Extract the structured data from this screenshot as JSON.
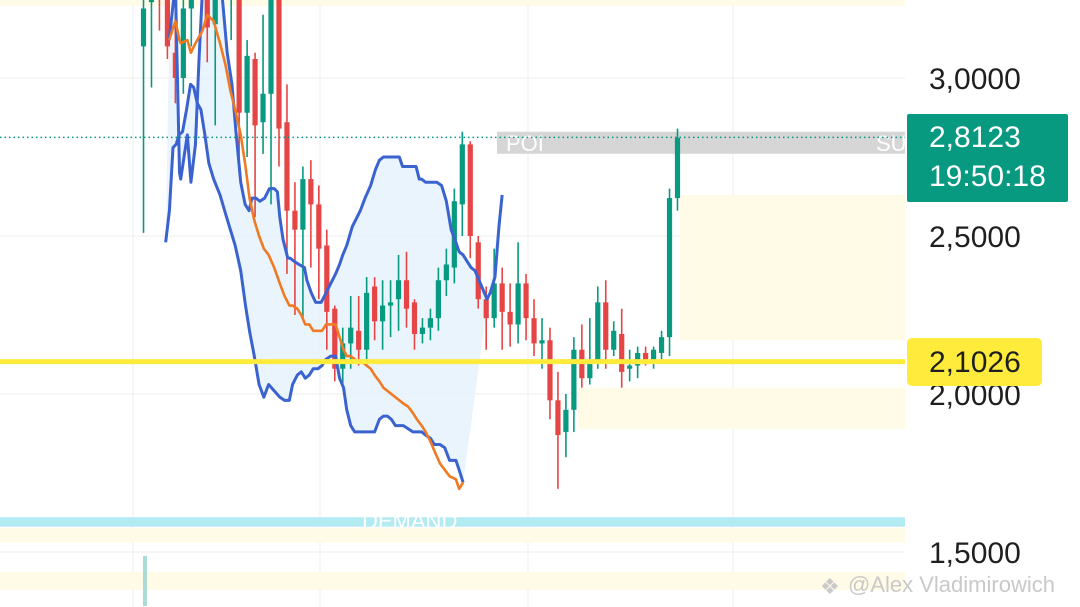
{
  "chart_data": {
    "type": "candlestick",
    "price_axis": {
      "ticks": [
        "3,0000",
        "2,5000",
        "2,0000",
        "1,5000"
      ],
      "tick_values": [
        3.0,
        2.5,
        2.0,
        1.5
      ],
      "range": [
        1.42,
        3.44
      ]
    },
    "last_price": {
      "label": "2,8123",
      "countdown": "19:50:18",
      "value": 2.8123,
      "color": "#089981"
    },
    "level_line": {
      "label": "2,1026",
      "value": 2.1026,
      "color": "#ffeb3b"
    },
    "zones": [
      {
        "label": "POI",
        "top": 2.83,
        "bottom": 2.76,
        "color": "#d6d6d6"
      },
      {
        "label": "SU",
        "top": 2.83,
        "bottom": 2.76,
        "color": "#d6d6d6"
      },
      {
        "label": "DEMAND",
        "top": 1.61,
        "bottom": 1.58,
        "color": "#b2ebf2"
      }
    ],
    "bollinger_upper": [
      [
        3.22,
        3.12
      ],
      [
        4.0,
        3.3
      ],
      [
        4.52,
        2.7
      ],
      [
        4.67,
        2.68
      ],
      [
        5.5,
        2.82
      ],
      [
        5.95,
        2.67
      ],
      [
        6.52,
        2.79
      ],
      [
        6.95,
        3.05
      ],
      [
        7.4,
        3.28
      ],
      [
        7.8,
        3.45
      ],
      [
        8.0,
        3.62
      ],
      [
        8.5,
        3.52
      ],
      [
        9.2,
        3.42
      ],
      [
        9.8,
        3.28
      ],
      [
        10.5,
        3.08
      ],
      [
        11.1,
        2.98
      ],
      [
        11.6,
        2.83
      ],
      [
        12.2,
        2.67
      ],
      [
        12.75,
        2.6
      ],
      [
        13.25,
        2.58
      ],
      [
        13.6,
        2.62
      ],
      [
        14.1,
        2.62
      ],
      [
        14.6,
        2.61
      ],
      [
        15.2,
        2.62
      ],
      [
        15.8,
        2.65
      ],
      [
        16.4,
        2.65
      ],
      [
        16.8,
        2.64
      ],
      [
        17.1,
        2.56
      ],
      [
        17.5,
        2.49
      ],
      [
        18.1,
        2.43
      ],
      [
        18.4,
        2.43
      ],
      [
        18.9,
        2.42
      ],
      [
        19.5,
        2.41
      ],
      [
        20.2,
        2.4
      ],
      [
        20.5,
        2.36
      ],
      [
        21.05,
        2.32
      ],
      [
        21.6,
        2.29
      ],
      [
        22.3,
        2.29
      ],
      [
        22.9,
        2.32
      ],
      [
        23.5,
        2.35
      ],
      [
        24.1,
        2.38
      ],
      [
        24.6,
        2.41
      ],
      [
        25.0,
        2.44
      ],
      [
        25.5,
        2.47
      ],
      [
        26.2,
        2.53
      ],
      [
        26.8,
        2.56
      ],
      [
        27.2,
        2.58
      ],
      [
        27.8,
        2.62
      ],
      [
        28.5,
        2.66
      ],
      [
        29.1,
        2.71
      ],
      [
        29.6,
        2.74
      ],
      [
        30.1,
        2.75
      ],
      [
        30.6,
        2.75
      ],
      [
        31.1,
        2.75
      ],
      [
        31.6,
        2.75
      ],
      [
        32.1,
        2.75
      ],
      [
        32.5,
        2.72
      ],
      [
        33.0,
        2.72
      ],
      [
        33.5,
        2.72
      ],
      [
        34.2,
        2.72
      ],
      [
        34.6,
        2.68
      ],
      [
        34.9,
        2.68
      ],
      [
        35.4,
        2.67
      ],
      [
        36.2,
        2.67
      ],
      [
        36.8,
        2.67
      ],
      [
        37.4,
        2.66
      ],
      [
        38.0,
        2.61
      ],
      [
        38.6,
        2.52
      ],
      [
        39.2,
        2.48
      ],
      [
        39.6,
        2.45
      ],
      [
        40.1,
        2.44
      ],
      [
        40.6,
        2.42
      ],
      [
        41.1,
        2.4
      ],
      [
        41.6,
        2.39
      ],
      [
        42.1,
        2.36
      ],
      [
        42.6,
        2.33
      ],
      [
        43.1,
        2.3
      ],
      [
        43.5,
        2.32
      ],
      [
        44.1,
        2.37
      ],
      [
        44.6,
        2.53
      ],
      [
        45.0,
        2.63
      ]
    ],
    "bollinger_lower": [
      [
        2.78,
        2.48
      ],
      [
        3.25,
        2.58
      ],
      [
        3.7,
        2.78
      ],
      [
        4.1,
        2.79
      ],
      [
        4.45,
        2.82
      ],
      [
        4.9,
        2.83
      ],
      [
        5.4,
        2.9
      ],
      [
        5.9,
        2.98
      ],
      [
        6.3,
        2.97
      ],
      [
        6.75,
        2.92
      ],
      [
        7.2,
        2.9
      ],
      [
        7.7,
        2.82
      ],
      [
        8.2,
        2.73
      ],
      [
        8.8,
        2.68
      ],
      [
        9.6,
        2.63
      ],
      [
        10.3,
        2.57
      ],
      [
        10.9,
        2.52
      ],
      [
        11.5,
        2.47
      ],
      [
        12.2,
        2.39
      ],
      [
        12.8,
        2.28
      ],
      [
        13.3,
        2.2
      ],
      [
        13.9,
        2.12
      ],
      [
        14.5,
        2.03
      ],
      [
        15.1,
        1.99
      ],
      [
        15.7,
        2.03
      ],
      [
        16.4,
        2.01
      ],
      [
        17.1,
        1.99
      ],
      [
        17.7,
        1.98
      ],
      [
        18.3,
        1.98
      ],
      [
        18.7,
        2.03
      ],
      [
        19.3,
        2.06
      ],
      [
        19.8,
        2.07
      ],
      [
        20.3,
        2.05
      ],
      [
        20.8,
        2.06
      ],
      [
        21.3,
        2.08
      ],
      [
        21.9,
        2.08
      ],
      [
        22.4,
        2.09
      ],
      [
        22.9,
        2.11
      ],
      [
        23.5,
        2.12
      ],
      [
        24.1,
        2.12
      ],
      [
        24.6,
        2.05
      ],
      [
        25.1,
        2.02
      ],
      [
        25.5,
        1.95
      ],
      [
        26.0,
        1.9
      ],
      [
        26.5,
        1.88
      ],
      [
        27.0,
        1.88
      ],
      [
        27.5,
        1.88
      ],
      [
        28.0,
        1.88
      ],
      [
        28.5,
        1.88
      ],
      [
        29.0,
        1.88
      ],
      [
        29.6,
        1.92
      ],
      [
        30.1,
        1.93
      ],
      [
        30.6,
        1.93
      ],
      [
        31.1,
        1.92
      ],
      [
        31.6,
        1.9
      ],
      [
        32.1,
        1.9
      ],
      [
        32.6,
        1.9
      ],
      [
        33.2,
        1.89
      ],
      [
        33.8,
        1.88
      ],
      [
        34.3,
        1.88
      ],
      [
        34.9,
        1.88
      ],
      [
        35.4,
        1.87
      ],
      [
        36.0,
        1.86
      ],
      [
        36.5,
        1.84
      ],
      [
        37.2,
        1.84
      ],
      [
        37.8,
        1.83
      ],
      [
        38.4,
        1.79
      ],
      [
        39.2,
        1.79
      ],
      [
        39.6,
        1.76
      ],
      [
        40.1,
        1.72
      ]
    ],
    "moving_average": [
      [
        3.22,
        3.12
      ],
      [
        4.0,
        3.18
      ],
      [
        4.52,
        3.12
      ],
      [
        4.67,
        3.11
      ],
      [
        5.5,
        3.12
      ],
      [
        5.95,
        3.08
      ],
      [
        6.52,
        3.11
      ],
      [
        7.4,
        3.15
      ],
      [
        8.0,
        3.2
      ],
      [
        8.8,
        3.18
      ],
      [
        9.6,
        3.11
      ],
      [
        10.3,
        3.04
      ],
      [
        10.9,
        2.96
      ],
      [
        11.5,
        2.9
      ],
      [
        12.2,
        2.82
      ],
      [
        12.8,
        2.72
      ],
      [
        13.3,
        2.62
      ],
      [
        13.9,
        2.55
      ],
      [
        14.5,
        2.5
      ],
      [
        15.1,
        2.46
      ],
      [
        15.7,
        2.44
      ],
      [
        16.4,
        2.4
      ],
      [
        17.1,
        2.35
      ],
      [
        17.7,
        2.31
      ],
      [
        18.3,
        2.28
      ],
      [
        18.7,
        2.28
      ],
      [
        19.3,
        2.27
      ],
      [
        19.8,
        2.25
      ],
      [
        20.3,
        2.22
      ],
      [
        20.8,
        2.22
      ],
      [
        21.3,
        2.2
      ],
      [
        21.9,
        2.2
      ],
      [
        22.4,
        2.2
      ],
      [
        22.9,
        2.22
      ],
      [
        23.5,
        2.22
      ],
      [
        24.1,
        2.22
      ],
      [
        24.6,
        2.18
      ],
      [
        25.1,
        2.14
      ],
      [
        25.5,
        2.12
      ],
      [
        26.0,
        2.12
      ],
      [
        26.5,
        2.11
      ],
      [
        27.0,
        2.1
      ],
      [
        27.5,
        2.1
      ],
      [
        28.0,
        2.09
      ],
      [
        28.5,
        2.08
      ],
      [
        29.0,
        2.06
      ],
      [
        29.6,
        2.04
      ],
      [
        30.1,
        2.02
      ],
      [
        30.6,
        2.01
      ],
      [
        31.1,
        2.0
      ],
      [
        31.6,
        1.99
      ],
      [
        32.1,
        1.98
      ],
      [
        32.6,
        1.97
      ],
      [
        33.2,
        1.96
      ],
      [
        33.8,
        1.94
      ],
      [
        34.3,
        1.92
      ],
      [
        34.9,
        1.9
      ],
      [
        35.4,
        1.88
      ],
      [
        36.0,
        1.85
      ],
      [
        36.5,
        1.82
      ],
      [
        37.2,
        1.78
      ],
      [
        37.8,
        1.76
      ],
      [
        38.4,
        1.74
      ],
      [
        39.2,
        1.73
      ],
      [
        39.6,
        1.7
      ],
      [
        40.1,
        1.72
      ]
    ],
    "candles": [
      {
        "o": 3.1,
        "h": 3.44,
        "l": 2.51,
        "c": 3.22
      },
      {
        "o": 3.24,
        "h": 3.44,
        "l": 2.97,
        "c": 3.4
      },
      {
        "o": 3.4,
        "h": 3.44,
        "l": 3.15,
        "c": 3.29
      },
      {
        "o": 3.28,
        "h": 3.44,
        "l": 3.06,
        "c": 3.1
      },
      {
        "o": 3.08,
        "h": 3.22,
        "l": 2.92,
        "c": 3.0
      },
      {
        "o": 3.0,
        "h": 3.34,
        "l": 2.95,
        "c": 3.22
      },
      {
        "o": 3.22,
        "h": 3.44,
        "l": 3.1,
        "c": 3.41
      },
      {
        "o": 3.4,
        "h": 3.44,
        "l": 3.26,
        "c": 3.34
      },
      {
        "o": 3.34,
        "h": 3.44,
        "l": 3.05,
        "c": 3.16
      },
      {
        "o": 3.17,
        "h": 3.44,
        "l": 2.85,
        "c": 3.4
      },
      {
        "o": 3.4,
        "h": 3.44,
        "l": 3.24,
        "c": 3.33
      },
      {
        "o": 3.33,
        "h": 3.44,
        "l": 3.12,
        "c": 3.44
      },
      {
        "o": 3.44,
        "h": 3.44,
        "l": 2.7,
        "c": 2.89
      },
      {
        "o": 2.89,
        "h": 3.12,
        "l": 2.75,
        "c": 3.07
      },
      {
        "o": 3.06,
        "h": 3.08,
        "l": 2.56,
        "c": 2.85
      },
      {
        "o": 2.86,
        "h": 3.2,
        "l": 2.76,
        "c": 2.95
      },
      {
        "o": 2.95,
        "h": 3.44,
        "l": 2.6,
        "c": 3.4
      },
      {
        "o": 3.38,
        "h": 3.44,
        "l": 2.72,
        "c": 2.84
      },
      {
        "o": 2.86,
        "h": 2.98,
        "l": 2.38,
        "c": 2.58
      },
      {
        "o": 2.58,
        "h": 2.67,
        "l": 2.25,
        "c": 2.52
      },
      {
        "o": 2.52,
        "h": 2.72,
        "l": 2.24,
        "c": 2.68
      },
      {
        "o": 2.68,
        "h": 2.74,
        "l": 2.4,
        "c": 2.6
      },
      {
        "o": 2.6,
        "h": 2.66,
        "l": 2.3,
        "c": 2.46
      },
      {
        "o": 2.47,
        "h": 2.52,
        "l": 2.14,
        "c": 2.26
      },
      {
        "o": 2.27,
        "h": 2.28,
        "l": 2.04,
        "c": 2.08
      },
      {
        "o": 2.08,
        "h": 2.21,
        "l": 2.02,
        "c": 2.16
      },
      {
        "o": 2.16,
        "h": 2.31,
        "l": 2.08,
        "c": 2.21
      },
      {
        "o": 2.2,
        "h": 2.31,
        "l": 2.09,
        "c": 2.14
      },
      {
        "o": 2.14,
        "h": 2.37,
        "l": 2.11,
        "c": 2.32
      },
      {
        "o": 2.34,
        "h": 2.37,
        "l": 2.17,
        "c": 2.23
      },
      {
        "o": 2.23,
        "h": 2.36,
        "l": 2.14,
        "c": 2.28
      },
      {
        "o": 2.28,
        "h": 2.36,
        "l": 2.18,
        "c": 2.29
      },
      {
        "o": 2.3,
        "h": 2.44,
        "l": 2.2,
        "c": 2.36
      },
      {
        "o": 2.36,
        "h": 2.45,
        "l": 2.21,
        "c": 2.27
      },
      {
        "o": 2.29,
        "h": 2.3,
        "l": 2.14,
        "c": 2.19
      },
      {
        "o": 2.19,
        "h": 2.24,
        "l": 2.16,
        "c": 2.21
      },
      {
        "o": 2.21,
        "h": 2.27,
        "l": 2.17,
        "c": 2.24
      },
      {
        "o": 2.24,
        "h": 2.4,
        "l": 2.2,
        "c": 2.36
      },
      {
        "o": 2.36,
        "h": 2.46,
        "l": 2.31,
        "c": 2.41
      },
      {
        "o": 2.4,
        "h": 2.65,
        "l": 2.35,
        "c": 2.61
      },
      {
        "o": 2.6,
        "h": 2.83,
        "l": 2.5,
        "c": 2.79
      },
      {
        "o": 2.79,
        "h": 2.8,
        "l": 2.43,
        "c": 2.5
      },
      {
        "o": 2.48,
        "h": 2.5,
        "l": 2.27,
        "c": 2.3
      },
      {
        "o": 2.3,
        "h": 2.34,
        "l": 2.14,
        "c": 2.24
      },
      {
        "o": 2.24,
        "h": 2.46,
        "l": 2.21,
        "c": 2.35
      },
      {
        "o": 2.35,
        "h": 2.4,
        "l": 2.14,
        "c": 2.26
      },
      {
        "o": 2.26,
        "h": 2.35,
        "l": 2.15,
        "c": 2.22
      },
      {
        "o": 2.22,
        "h": 2.48,
        "l": 2.16,
        "c": 2.35
      },
      {
        "o": 2.35,
        "h": 2.38,
        "l": 2.17,
        "c": 2.24
      },
      {
        "o": 2.24,
        "h": 2.3,
        "l": 2.12,
        "c": 2.16
      },
      {
        "o": 2.16,
        "h": 2.24,
        "l": 2.08,
        "c": 2.17
      },
      {
        "o": 2.17,
        "h": 2.21,
        "l": 1.92,
        "c": 1.98
      },
      {
        "o": 1.98,
        "h": 2.07,
        "l": 1.7,
        "c": 1.87
      },
      {
        "o": 1.88,
        "h": 2.0,
        "l": 1.8,
        "c": 1.95
      },
      {
        "o": 1.95,
        "h": 2.18,
        "l": 1.88,
        "c": 2.14
      },
      {
        "o": 2.14,
        "h": 2.22,
        "l": 2.02,
        "c": 2.05
      },
      {
        "o": 2.05,
        "h": 2.24,
        "l": 2.03,
        "c": 2.1
      },
      {
        "o": 2.1,
        "h": 2.34,
        "l": 2.08,
        "c": 2.29
      },
      {
        "o": 2.29,
        "h": 2.36,
        "l": 2.08,
        "c": 2.14
      },
      {
        "o": 2.14,
        "h": 2.23,
        "l": 2.12,
        "c": 2.2
      },
      {
        "o": 2.19,
        "h": 2.27,
        "l": 2.02,
        "c": 2.07
      },
      {
        "o": 2.08,
        "h": 2.14,
        "l": 2.04,
        "c": 2.09
      },
      {
        "o": 2.09,
        "h": 2.15,
        "l": 2.05,
        "c": 2.13
      },
      {
        "o": 2.13,
        "h": 2.15,
        "l": 2.09,
        "c": 2.1
      },
      {
        "o": 2.1,
        "h": 2.15,
        "l": 2.08,
        "c": 2.14
      },
      {
        "o": 2.13,
        "h": 2.2,
        "l": 2.1,
        "c": 2.18
      },
      {
        "o": 2.18,
        "h": 2.65,
        "l": 2.12,
        "c": 2.62
      },
      {
        "o": 2.62,
        "h": 2.84,
        "l": 2.58,
        "c": 2.81
      }
    ]
  },
  "watermark": {
    "text": "@Alex Vladimirowich"
  }
}
